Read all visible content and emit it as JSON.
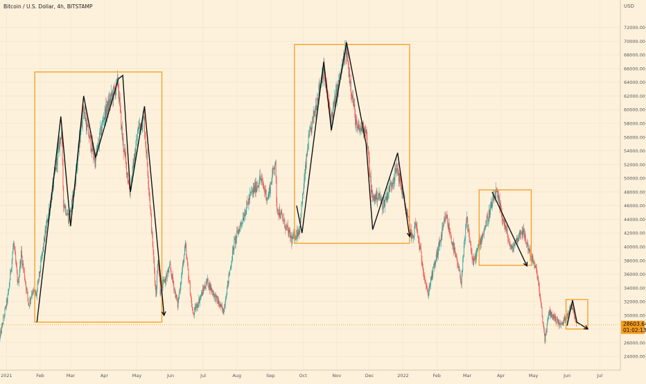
{
  "header": {
    "title": "Bitcoin / U.S. Dollar, 4h, BITSTAMP",
    "currency": "USD"
  },
  "price_tag": {
    "value": "28603.64",
    "countdown": "01:02:13"
  },
  "colors": {
    "background": "#fdf1dc",
    "up_candle": "#26a69a",
    "down_candle": "#ef5350",
    "box": "#f59b1e",
    "pattern_line": "#111111",
    "price_tag": "#f59b1e"
  },
  "chart_data": {
    "type": "candlestick",
    "title": "Bitcoin / U.S. Dollar, 4h, BITSTAMP",
    "y_unit": "USD",
    "ylim": [
      22000,
      76000
    ],
    "y_ticks": [
      24000,
      26000,
      28000,
      30000,
      32000,
      34000,
      36000,
      38000,
      40000,
      42000,
      44000,
      46000,
      48000,
      50000,
      52000,
      54000,
      56000,
      58000,
      60000,
      62000,
      64000,
      66000,
      68000,
      70000,
      72000
    ],
    "x_ticks": [
      "2021",
      "Feb",
      "Mar",
      "Apr",
      "May",
      "Jun",
      "Jul",
      "Aug",
      "Sep",
      "Oct",
      "Nov",
      "Dec",
      "2022",
      "Feb",
      "Mar",
      "Apr",
      "May",
      "Jun",
      "Jul"
    ],
    "x_tick_dates": [
      "2021-01-01",
      "2021-02-01",
      "2021-03-01",
      "2021-04-01",
      "2021-05-01",
      "2021-06-01",
      "2021-07-01",
      "2021-08-01",
      "2021-09-01",
      "2021-10-01",
      "2021-11-01",
      "2021-12-01",
      "2022-01-01",
      "2022-02-01",
      "2022-03-01",
      "2022-04-01",
      "2022-05-01",
      "2022-06-01",
      "2022-07-01"
    ],
    "x_range": [
      "2020-12-26",
      "2022-07-20"
    ],
    "last_price": 28603.64,
    "price_path": [
      [
        "2020-12-26",
        26500
      ],
      [
        "2021-01-03",
        33000
      ],
      [
        "2021-01-08",
        40500
      ],
      [
        "2021-01-12",
        34500
      ],
      [
        "2021-01-15",
        39000
      ],
      [
        "2021-01-22",
        31500
      ],
      [
        "2021-01-25",
        33500
      ],
      [
        "2021-01-29",
        33000
      ],
      [
        "2021-02-08",
        44000
      ],
      [
        "2021-02-12",
        47500
      ],
      [
        "2021-02-21",
        57000
      ],
      [
        "2021-02-23",
        46500
      ],
      [
        "2021-02-28",
        44000
      ],
      [
        "2021-03-05",
        48500
      ],
      [
        "2021-03-13",
        60500
      ],
      [
        "2021-03-17",
        57000
      ],
      [
        "2021-03-24",
        52500
      ],
      [
        "2021-04-01",
        59000
      ],
      [
        "2021-04-14",
        64000
      ],
      [
        "2021-04-18",
        56000
      ],
      [
        "2021-04-25",
        48000
      ],
      [
        "2021-05-03",
        57500
      ],
      [
        "2021-05-08",
        58500
      ],
      [
        "2021-05-12",
        50000
      ],
      [
        "2021-05-19",
        33000
      ],
      [
        "2021-05-21",
        38500
      ],
      [
        "2021-05-23",
        33500
      ],
      [
        "2021-06-01",
        37000
      ],
      [
        "2021-06-08",
        31500
      ],
      [
        "2021-06-15",
        40000
      ],
      [
        "2021-06-22",
        30000
      ],
      [
        "2021-07-05",
        35000
      ],
      [
        "2021-07-20",
        30500
      ],
      [
        "2021-07-30",
        40500
      ],
      [
        "2021-08-14",
        47500
      ],
      [
        "2021-08-20",
        49000
      ],
      [
        "2021-08-23",
        50000
      ],
      [
        "2021-08-30",
        47000
      ],
      [
        "2021-09-06",
        52800
      ],
      [
        "2021-09-07",
        46000
      ],
      [
        "2021-09-21",
        41000
      ],
      [
        "2021-09-28",
        42500
      ],
      [
        "2021-10-06",
        55000
      ],
      [
        "2021-10-20",
        66000
      ],
      [
        "2021-10-27",
        58500
      ],
      [
        "2021-11-10",
        68800
      ],
      [
        "2021-11-20",
        57000
      ],
      [
        "2021-11-28",
        57500
      ],
      [
        "2021-12-04",
        47000
      ],
      [
        "2021-12-10",
        47500
      ],
      [
        "2021-12-14",
        46000
      ],
      [
        "2021-12-27",
        51500
      ],
      [
        "2022-01-10",
        41000
      ],
      [
        "2022-01-13",
        43500
      ],
      [
        "2022-01-24",
        33000
      ],
      [
        "2022-02-10",
        44500
      ],
      [
        "2022-02-24",
        35000
      ],
      [
        "2022-03-01",
        44000
      ],
      [
        "2022-03-07",
        37500
      ],
      [
        "2022-03-28",
        48000
      ],
      [
        "2022-04-11",
        39500
      ],
      [
        "2022-04-21",
        42500
      ],
      [
        "2022-05-05",
        36000
      ],
      [
        "2022-05-12",
        26500
      ],
      [
        "2022-05-16",
        30500
      ],
      [
        "2022-05-27",
        28500
      ],
      [
        "2022-06-06",
        31500
      ],
      [
        "2022-06-10",
        29000
      ]
    ],
    "highlight_boxes": [
      {
        "start": "2021-01-27",
        "end": "2021-05-24",
        "low": 29000,
        "high": 65500
      },
      {
        "start": "2021-09-23",
        "end": "2022-01-07",
        "low": 40500,
        "high": 69500
      },
      {
        "start": "2022-03-12",
        "end": "2022-04-29",
        "low": 37300,
        "high": 48300
      },
      {
        "start": "2022-05-31",
        "end": "2022-06-20",
        "low": 28000,
        "high": 32300
      }
    ],
    "pattern_lines": [
      [
        [
          "2021-01-29",
          29000
        ],
        [
          "2021-02-20",
          59000
        ],
        [
          "2021-03-01",
          43000
        ],
        [
          "2021-03-13",
          62000
        ],
        [
          "2021-03-24",
          53000
        ],
        [
          "2021-04-14",
          64500
        ],
        [
          "2021-04-18",
          65000
        ],
        [
          "2021-04-25",
          48000
        ],
        [
          "2021-05-08",
          60500
        ],
        [
          "2021-05-26",
          30000
        ]
      ],
      [
        [
          "2021-09-25",
          46000
        ],
        [
          "2021-09-30",
          42000
        ],
        [
          "2021-10-20",
          67000
        ],
        [
          "2021-10-27",
          57000
        ],
        [
          "2021-11-10",
          69800
        ],
        [
          "2021-11-28",
          55000
        ],
        [
          "2021-12-04",
          42500
        ],
        [
          "2021-12-27",
          53700
        ],
        [
          "2022-01-07",
          41500
        ]
      ],
      [
        [
          "2022-03-24",
          48000
        ],
        [
          "2022-04-25",
          37200
        ]
      ],
      [
        [
          "2022-06-01",
          28500
        ],
        [
          "2022-06-06",
          32200
        ],
        [
          "2022-06-10",
          29000
        ],
        [
          "2022-06-20",
          28000
        ]
      ]
    ]
  }
}
